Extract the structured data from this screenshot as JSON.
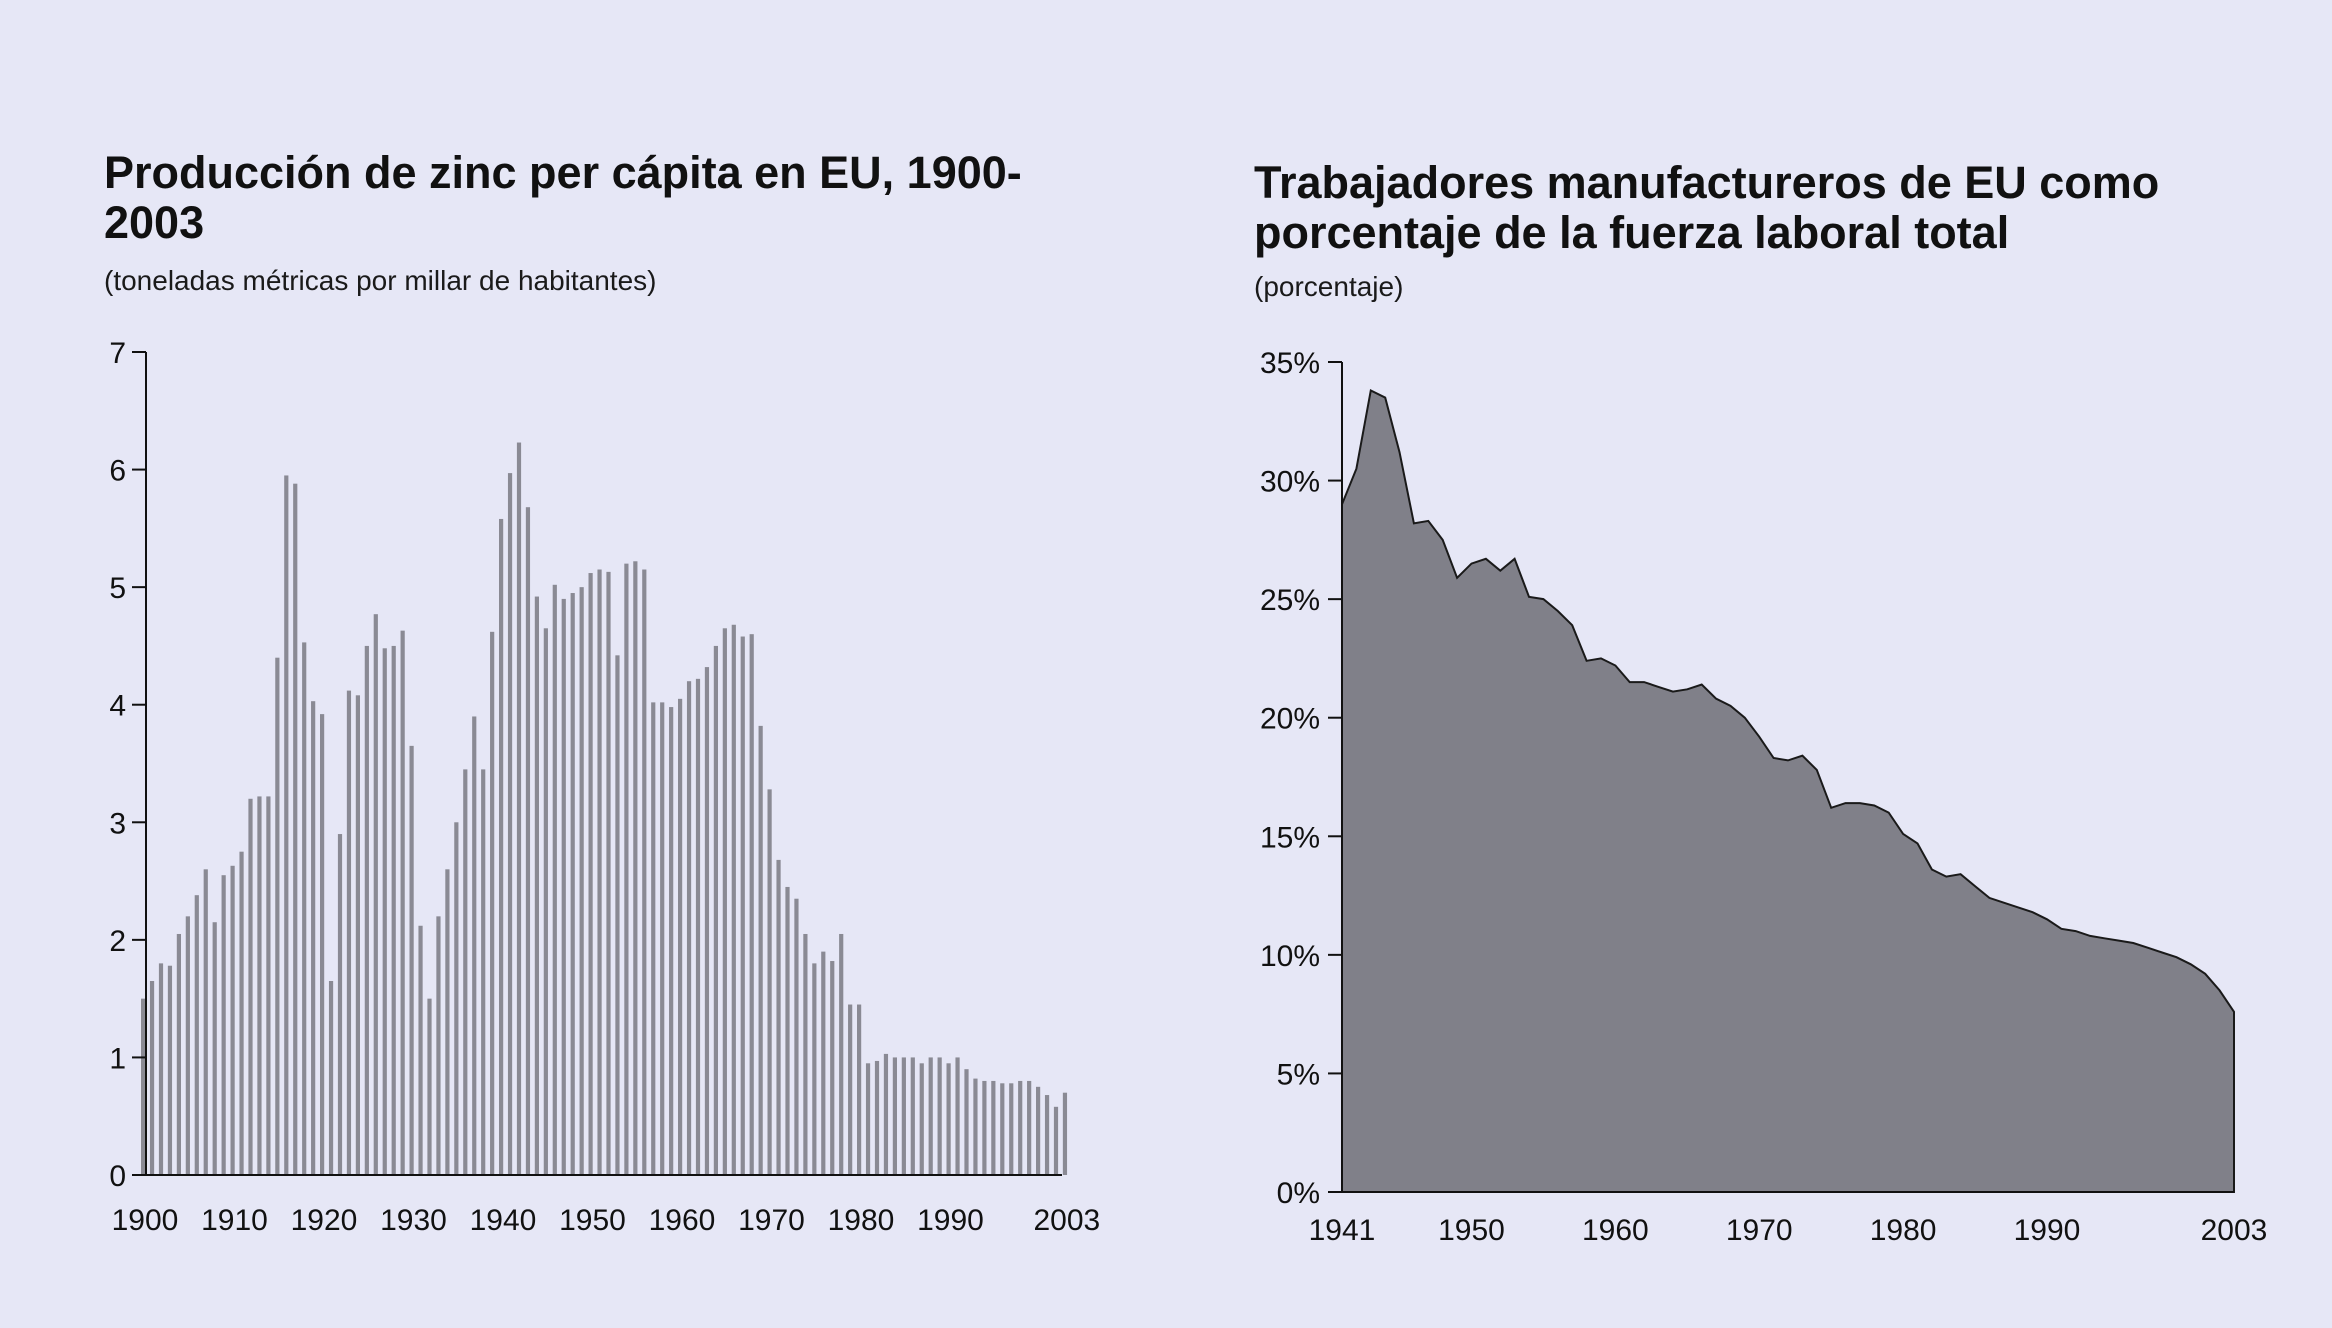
{
  "colors": {
    "background": "#e6e7f6",
    "bar": "#8a8a94",
    "area_fill": "#808089",
    "axis": "#111111"
  },
  "chart_data": [
    {
      "type": "bar",
      "title": "Producción de zinc per cápita en EU, 1900-2003",
      "subtitle": "(toneladas métricas por millar de habitantes)",
      "xlabel": "",
      "ylabel": "",
      "ylim": [
        0,
        7
      ],
      "yticks": [
        0,
        1,
        2,
        3,
        4,
        5,
        6,
        7
      ],
      "xticks": [
        "1900",
        "1910",
        "1920",
        "1930",
        "1940",
        "1950",
        "1960",
        "1970",
        "1980",
        "1990",
        "2003"
      ],
      "grid": false,
      "x_start": 1900,
      "x_end": 2003,
      "categories": [
        1900,
        1901,
        1902,
        1903,
        1904,
        1905,
        1906,
        1907,
        1908,
        1909,
        1910,
        1911,
        1912,
        1913,
        1914,
        1915,
        1916,
        1917,
        1918,
        1919,
        1920,
        1921,
        1922,
        1923,
        1924,
        1925,
        1926,
        1927,
        1928,
        1929,
        1930,
        1931,
        1932,
        1933,
        1934,
        1935,
        1936,
        1937,
        1938,
        1939,
        1940,
        1941,
        1942,
        1943,
        1944,
        1945,
        1946,
        1947,
        1948,
        1949,
        1950,
        1951,
        1952,
        1953,
        1954,
        1955,
        1956,
        1957,
        1958,
        1959,
        1960,
        1961,
        1962,
        1963,
        1964,
        1965,
        1966,
        1967,
        1968,
        1969,
        1970,
        1971,
        1972,
        1973,
        1974,
        1975,
        1976,
        1977,
        1978,
        1979,
        1980,
        1981,
        1982,
        1983,
        1984,
        1985,
        1986,
        1987,
        1988,
        1989,
        1990,
        1991,
        1992,
        1993,
        1994,
        1995,
        1996,
        1997,
        1998,
        1999,
        2000,
        2001,
        2002,
        2003
      ],
      "values": [
        1.5,
        1.65,
        1.8,
        1.78,
        2.05,
        2.2,
        2.38,
        2.6,
        2.15,
        2.55,
        2.63,
        2.75,
        3.2,
        3.22,
        3.22,
        4.4,
        5.95,
        5.88,
        4.53,
        4.03,
        3.92,
        1.65,
        2.9,
        4.12,
        4.08,
        4.5,
        4.77,
        4.48,
        4.5,
        4.63,
        3.65,
        2.12,
        1.5,
        2.2,
        2.6,
        3.0,
        3.45,
        3.9,
        3.45,
        4.62,
        5.58,
        5.97,
        6.23,
        5.68,
        4.92,
        4.65,
        5.02,
        4.9,
        4.95,
        5.0,
        5.12,
        5.15,
        5.13,
        4.42,
        5.2,
        5.22,
        5.15,
        4.02,
        4.02,
        3.98,
        4.05,
        4.2,
        4.22,
        4.32,
        4.5,
        4.65,
        4.68,
        4.58,
        4.6,
        3.82,
        3.28,
        2.68,
        2.45,
        2.35,
        2.05,
        1.8,
        1.9,
        1.82,
        2.05,
        1.45,
        1.45,
        0.95,
        0.97,
        1.03,
        1.0,
        1.0,
        1.0,
        0.95,
        1.0,
        1.0,
        0.95,
        1.0,
        0.9,
        0.82,
        0.8,
        0.8,
        0.78,
        0.78,
        0.8,
        0.8,
        0.75,
        0.68,
        0.58,
        0.7
      ]
    },
    {
      "type": "area",
      "title": "Trabajadores manufactureros de EU como porcentaje de la fuerza laboral total",
      "subtitle": "(porcentaje)",
      "xlabel": "",
      "ylabel": "",
      "ylim": [
        0,
        35
      ],
      "yticks": [
        "0%",
        "5%",
        "10%",
        "15%",
        "20%",
        "25%",
        "30%",
        "35%"
      ],
      "xticks": [
        "1941",
        "1950",
        "1960",
        "1970",
        "1980",
        "1990",
        "2003"
      ],
      "grid": false,
      "x": [
        1941,
        1942,
        1943,
        1944,
        1945,
        1946,
        1947,
        1948,
        1949,
        1950,
        1951,
        1952,
        1953,
        1954,
        1955,
        1956,
        1957,
        1958,
        1959,
        1960,
        1961,
        1962,
        1963,
        1964,
        1965,
        1966,
        1967,
        1968,
        1969,
        1970,
        1971,
        1972,
        1973,
        1974,
        1975,
        1976,
        1977,
        1978,
        1979,
        1980,
        1981,
        1982,
        1983,
        1984,
        1985,
        1986,
        1987,
        1988,
        1989,
        1990,
        1991,
        1992,
        1993,
        1994,
        1995,
        1996,
        1997,
        1998,
        1999,
        2000,
        2001,
        2002,
        2003
      ],
      "values": [
        29.0,
        30.5,
        33.8,
        33.5,
        31.2,
        28.2,
        28.3,
        27.5,
        25.9,
        26.5,
        26.7,
        26.2,
        26.7,
        25.1,
        25.0,
        24.5,
        23.9,
        22.4,
        22.5,
        22.2,
        21.5,
        21.5,
        21.3,
        21.1,
        21.2,
        21.4,
        20.8,
        20.5,
        20.0,
        19.2,
        18.3,
        18.2,
        18.4,
        17.8,
        16.2,
        16.4,
        16.4,
        16.3,
        16.0,
        15.1,
        14.7,
        13.6,
        13.3,
        13.4,
        12.9,
        12.4,
        12.2,
        12.0,
        11.8,
        11.5,
        11.1,
        11.0,
        10.8,
        10.7,
        10.6,
        10.5,
        10.3,
        10.1,
        9.9,
        9.6,
        9.2,
        8.5,
        7.6
      ]
    }
  ]
}
